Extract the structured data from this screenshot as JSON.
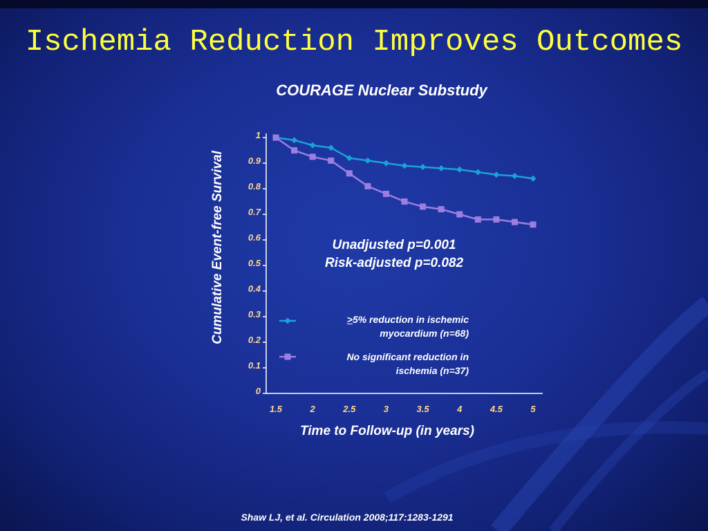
{
  "title": "Ischemia Reduction Improves Outcomes",
  "subtitle": "COURAGE Nuclear Substudy",
  "annotation": {
    "line1": "Unadjusted p=0.001",
    "line2": "Risk-adjusted p=0.082"
  },
  "legend": {
    "series1_prefix": ">",
    "series1_line1": "5% reduction in ischemic",
    "series1_line2": "myocardium (n=68)",
    "series2_line1": "No significant reduction in",
    "series2_line2": "ischemia (n=37)"
  },
  "citation": "Shaw LJ,  et al. Circulation 2008;117:1283-1291",
  "colors": {
    "series1": "#1aa3d9",
    "series2": "#9b7fe0",
    "title": "#ffff3c",
    "tick": "#ffd98a"
  },
  "chart_data": {
    "type": "line",
    "xlabel": "Time to Follow-up (in years)",
    "ylabel": "Cumulative Event-free Survival",
    "xlim": [
      1.5,
      5
    ],
    "ylim": [
      0,
      1
    ],
    "x_ticks": [
      "1.5",
      "2",
      "2.5",
      "3",
      "3.5",
      "4",
      "4.5",
      "5"
    ],
    "y_ticks": [
      "0",
      "0.1",
      "0.2",
      "0.3",
      "0.4",
      "0.5",
      "0.6",
      "0.7",
      "0.8",
      "0.9",
      "1"
    ],
    "series": [
      {
        "name": ">5% reduction in ischemic myocardium (n=68)",
        "marker": "diamond",
        "x": [
          1.5,
          1.75,
          2.0,
          2.25,
          2.5,
          2.75,
          3.0,
          3.25,
          3.5,
          3.75,
          4.0,
          4.25,
          4.5,
          4.75,
          5.0
        ],
        "y": [
          1.0,
          0.99,
          0.97,
          0.96,
          0.92,
          0.91,
          0.9,
          0.89,
          0.885,
          0.88,
          0.875,
          0.865,
          0.855,
          0.85,
          0.84
        ]
      },
      {
        "name": "No significant reduction in ischemia (n=37)",
        "marker": "square",
        "x": [
          1.5,
          1.75,
          2.0,
          2.25,
          2.5,
          2.75,
          3.0,
          3.25,
          3.5,
          3.75,
          4.0,
          4.25,
          4.5,
          4.75,
          5.0
        ],
        "y": [
          1.0,
          0.95,
          0.925,
          0.91,
          0.86,
          0.81,
          0.78,
          0.75,
          0.73,
          0.72,
          0.7,
          0.68,
          0.68,
          0.67,
          0.66
        ]
      }
    ]
  }
}
